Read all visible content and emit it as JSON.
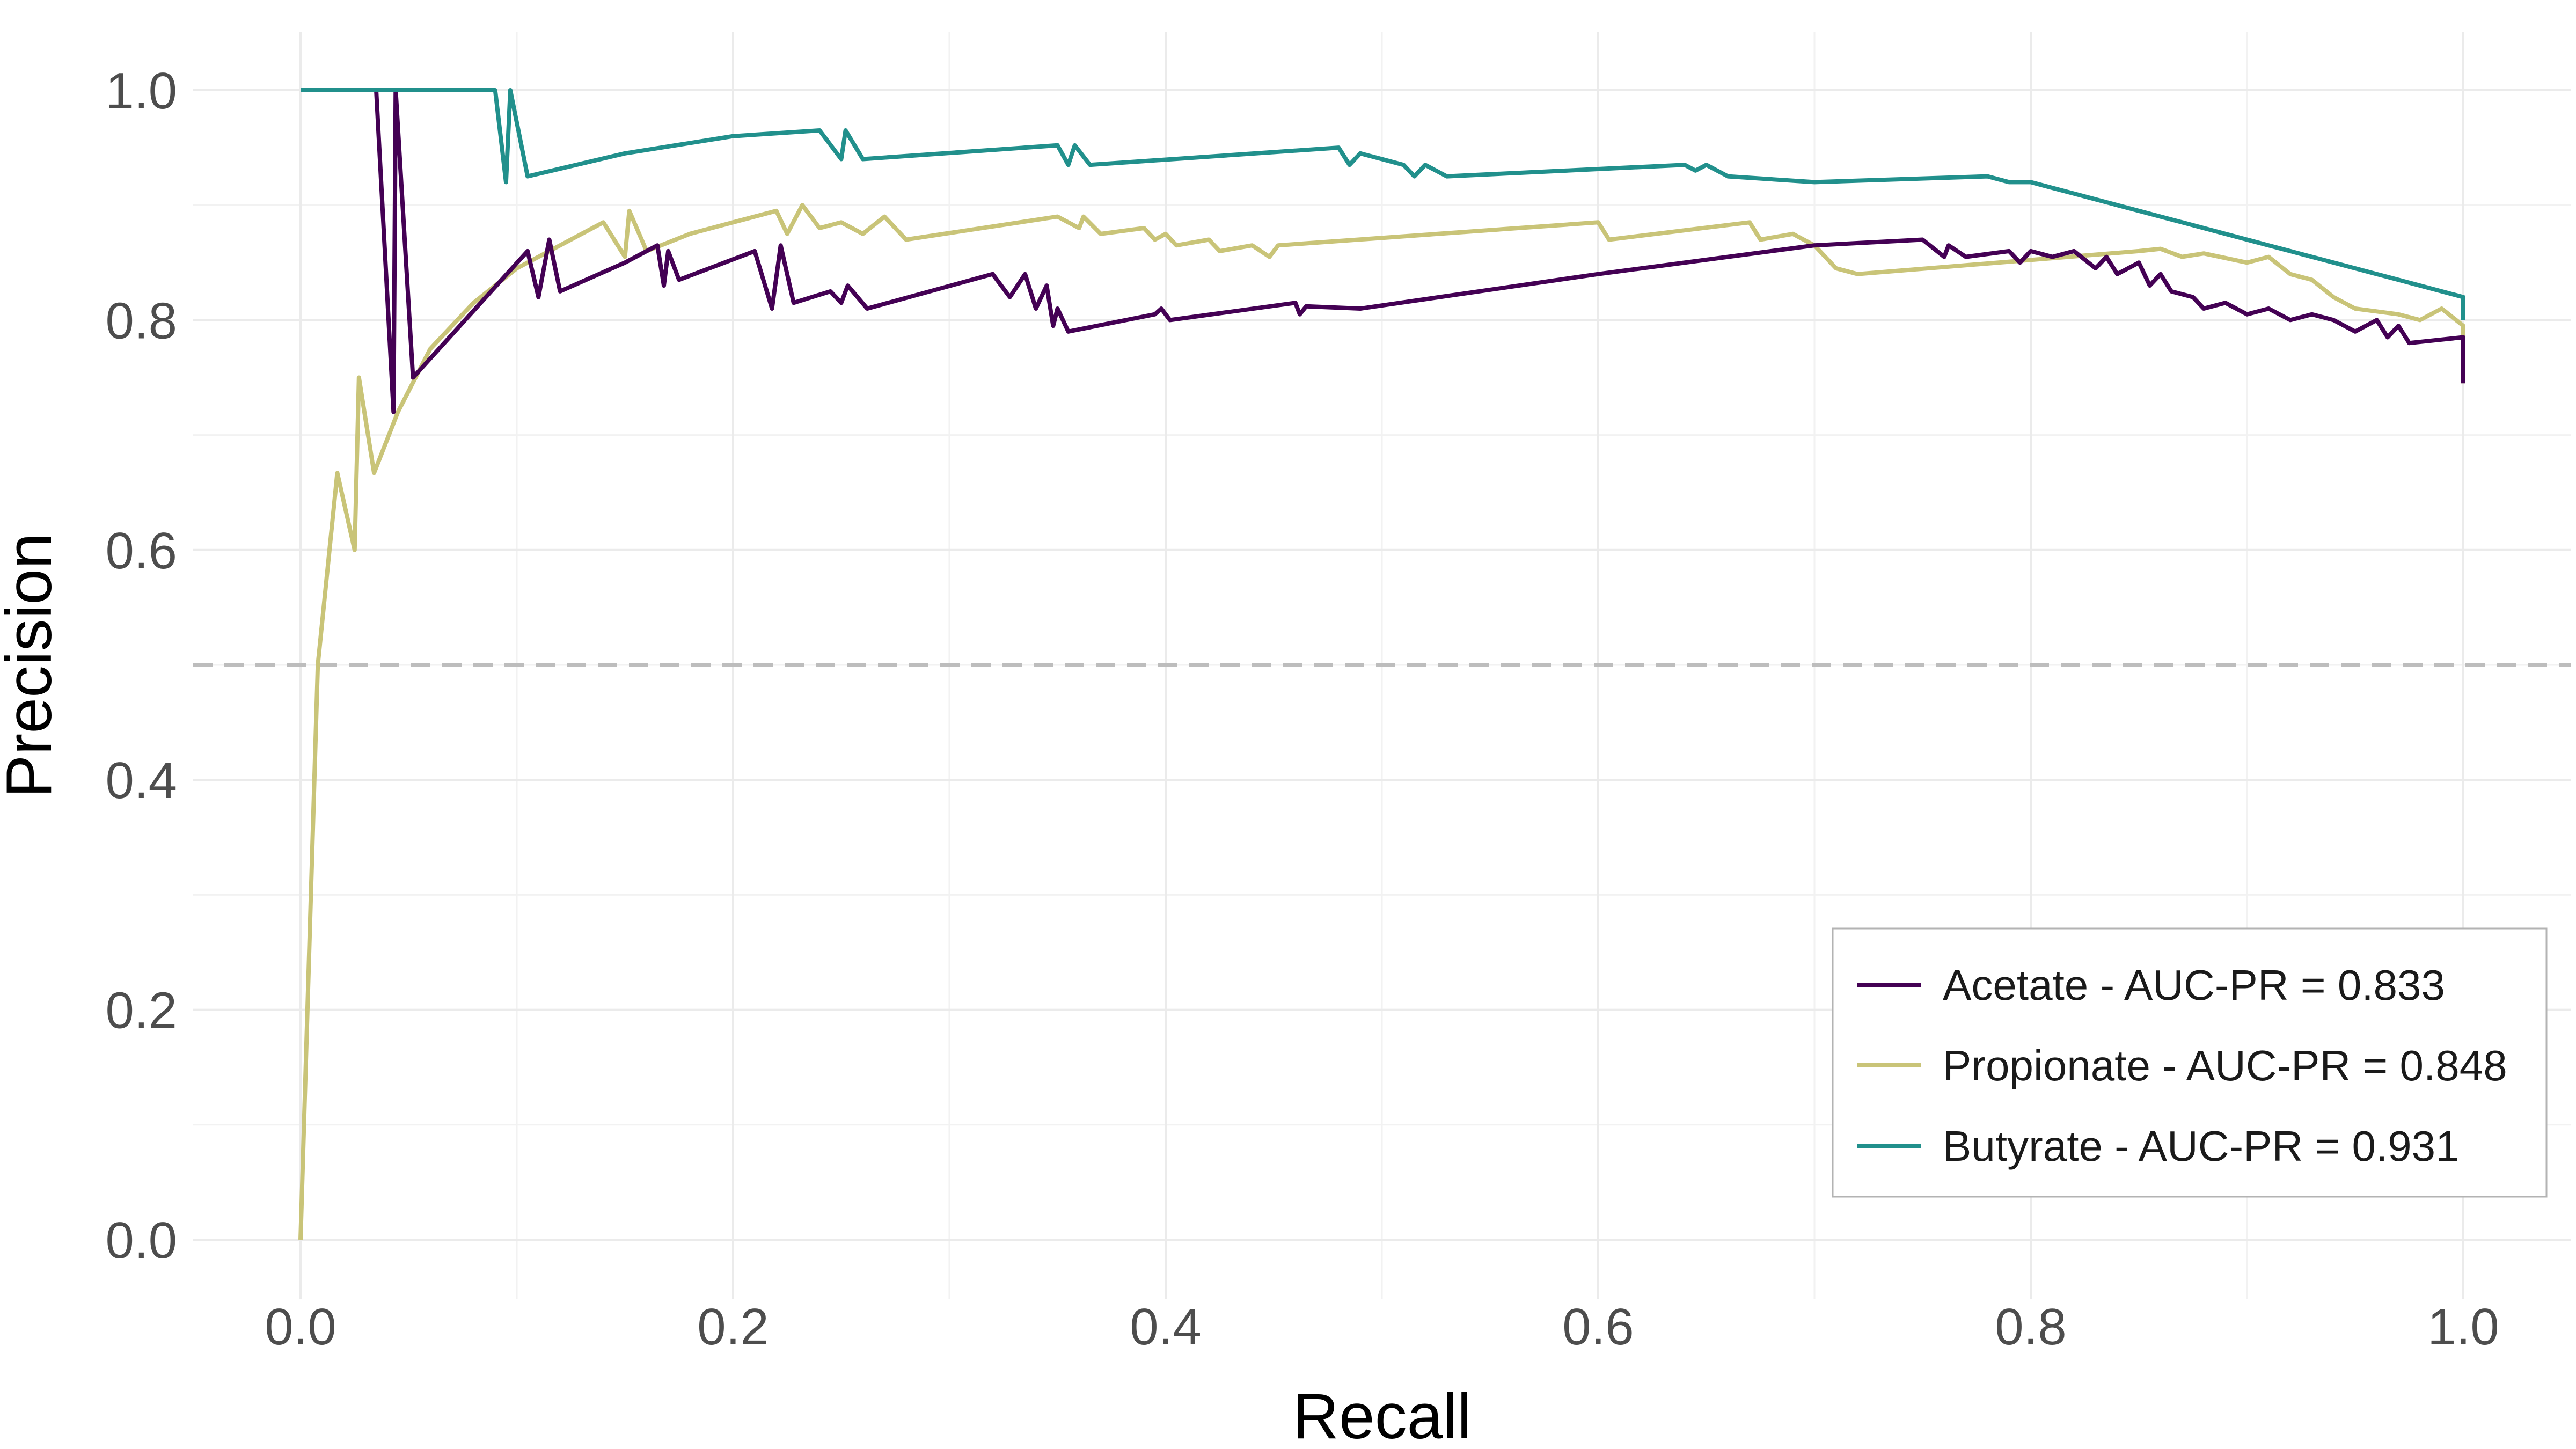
{
  "chart_data": {
    "type": "line",
    "title": "",
    "xlabel": "Recall",
    "ylabel": "Precision",
    "xlim": [
      -0.05,
      1.05
    ],
    "ylim": [
      -0.05,
      1.05
    ],
    "x_ticks": [
      0.0,
      0.2,
      0.4,
      0.6,
      0.8,
      1.0
    ],
    "y_ticks": [
      0.0,
      0.2,
      0.4,
      0.6,
      0.8,
      1.0
    ],
    "x_tick_labels": [
      "0.0",
      "0.2",
      "0.4",
      "0.6",
      "0.8",
      "1.0"
    ],
    "y_tick_labels": [
      "0.0",
      "0.2",
      "0.4",
      "0.6",
      "0.8",
      "1.0"
    ],
    "grid": true,
    "baseline": {
      "y": 0.5,
      "style": "dashed",
      "color": "#bdbdbd"
    },
    "legend_position": "bottom-right",
    "series": [
      {
        "name": "Acetate - AUC-PR = 0.833",
        "color": "#440154",
        "points": [
          [
            0.035,
            1.0
          ],
          [
            0.043,
            0.72
          ],
          [
            0.044,
            1.0
          ],
          [
            0.052,
            0.75
          ],
          [
            0.105,
            0.86
          ],
          [
            0.11,
            0.82
          ],
          [
            0.115,
            0.87
          ],
          [
            0.12,
            0.825
          ],
          [
            0.15,
            0.85
          ],
          [
            0.165,
            0.865
          ],
          [
            0.168,
            0.83
          ],
          [
            0.17,
            0.86
          ],
          [
            0.175,
            0.835
          ],
          [
            0.21,
            0.86
          ],
          [
            0.218,
            0.81
          ],
          [
            0.222,
            0.865
          ],
          [
            0.228,
            0.815
          ],
          [
            0.245,
            0.825
          ],
          [
            0.25,
            0.815
          ],
          [
            0.253,
            0.83
          ],
          [
            0.262,
            0.81
          ],
          [
            0.32,
            0.84
          ],
          [
            0.328,
            0.82
          ],
          [
            0.335,
            0.84
          ],
          [
            0.34,
            0.81
          ],
          [
            0.345,
            0.83
          ],
          [
            0.348,
            0.795
          ],
          [
            0.35,
            0.81
          ],
          [
            0.355,
            0.79
          ],
          [
            0.395,
            0.805
          ],
          [
            0.398,
            0.81
          ],
          [
            0.402,
            0.8
          ],
          [
            0.46,
            0.815
          ],
          [
            0.462,
            0.805
          ],
          [
            0.465,
            0.812
          ],
          [
            0.49,
            0.81
          ],
          [
            0.6,
            0.84
          ],
          [
            0.7,
            0.865
          ],
          [
            0.75,
            0.87
          ],
          [
            0.76,
            0.855
          ],
          [
            0.762,
            0.865
          ],
          [
            0.77,
            0.855
          ],
          [
            0.79,
            0.86
          ],
          [
            0.795,
            0.85
          ],
          [
            0.8,
            0.86
          ],
          [
            0.81,
            0.855
          ],
          [
            0.82,
            0.86
          ],
          [
            0.83,
            0.845
          ],
          [
            0.835,
            0.855
          ],
          [
            0.84,
            0.84
          ],
          [
            0.85,
            0.85
          ],
          [
            0.855,
            0.83
          ],
          [
            0.86,
            0.84
          ],
          [
            0.865,
            0.825
          ],
          [
            0.875,
            0.82
          ],
          [
            0.88,
            0.81
          ],
          [
            0.89,
            0.815
          ],
          [
            0.9,
            0.805
          ],
          [
            0.91,
            0.81
          ],
          [
            0.92,
            0.8
          ],
          [
            0.93,
            0.805
          ],
          [
            0.94,
            0.8
          ],
          [
            0.95,
            0.79
          ],
          [
            0.96,
            0.8
          ],
          [
            0.965,
            0.785
          ],
          [
            0.97,
            0.795
          ],
          [
            0.975,
            0.78
          ],
          [
            1.0,
            0.785
          ],
          [
            1.0,
            0.745
          ]
        ]
      },
      {
        "name": "Propionate - AUC-PR = 0.848",
        "color": "#c9c478",
        "points": [
          [
            0.0,
            0.0
          ],
          [
            0.008,
            0.5
          ],
          [
            0.017,
            0.667
          ],
          [
            0.025,
            0.6
          ],
          [
            0.027,
            0.75
          ],
          [
            0.034,
            0.667
          ],
          [
            0.045,
            0.72
          ],
          [
            0.06,
            0.775
          ],
          [
            0.08,
            0.815
          ],
          [
            0.1,
            0.845
          ],
          [
            0.12,
            0.865
          ],
          [
            0.14,
            0.885
          ],
          [
            0.15,
            0.855
          ],
          [
            0.152,
            0.895
          ],
          [
            0.16,
            0.86
          ],
          [
            0.18,
            0.875
          ],
          [
            0.2,
            0.885
          ],
          [
            0.22,
            0.895
          ],
          [
            0.225,
            0.875
          ],
          [
            0.232,
            0.9
          ],
          [
            0.24,
            0.88
          ],
          [
            0.25,
            0.885
          ],
          [
            0.26,
            0.875
          ],
          [
            0.27,
            0.89
          ],
          [
            0.28,
            0.87
          ],
          [
            0.35,
            0.89
          ],
          [
            0.36,
            0.88
          ],
          [
            0.362,
            0.89
          ],
          [
            0.37,
            0.875
          ],
          [
            0.39,
            0.88
          ],
          [
            0.395,
            0.87
          ],
          [
            0.4,
            0.875
          ],
          [
            0.405,
            0.865
          ],
          [
            0.42,
            0.87
          ],
          [
            0.425,
            0.86
          ],
          [
            0.44,
            0.865
          ],
          [
            0.448,
            0.855
          ],
          [
            0.452,
            0.865
          ],
          [
            0.6,
            0.885
          ],
          [
            0.605,
            0.87
          ],
          [
            0.67,
            0.885
          ],
          [
            0.675,
            0.87
          ],
          [
            0.69,
            0.875
          ],
          [
            0.7,
            0.865
          ],
          [
            0.71,
            0.845
          ],
          [
            0.72,
            0.84
          ],
          [
            0.85,
            0.86
          ],
          [
            0.86,
            0.862
          ],
          [
            0.87,
            0.855
          ],
          [
            0.88,
            0.858
          ],
          [
            0.9,
            0.85
          ],
          [
            0.91,
            0.855
          ],
          [
            0.92,
            0.84
          ],
          [
            0.93,
            0.835
          ],
          [
            0.94,
            0.82
          ],
          [
            0.95,
            0.81
          ],
          [
            0.97,
            0.805
          ],
          [
            0.98,
            0.8
          ],
          [
            0.99,
            0.81
          ],
          [
            1.0,
            0.795
          ],
          [
            1.0,
            0.745
          ]
        ]
      },
      {
        "name": "Butyrate - AUC-PR = 0.931",
        "color": "#21908c",
        "points": [
          [
            0.0,
            1.0
          ],
          [
            0.09,
            1.0
          ],
          [
            0.095,
            0.92
          ],
          [
            0.097,
            1.0
          ],
          [
            0.105,
            0.925
          ],
          [
            0.15,
            0.945
          ],
          [
            0.2,
            0.96
          ],
          [
            0.24,
            0.965
          ],
          [
            0.25,
            0.94
          ],
          [
            0.252,
            0.965
          ],
          [
            0.26,
            0.94
          ],
          [
            0.35,
            0.952
          ],
          [
            0.355,
            0.935
          ],
          [
            0.358,
            0.952
          ],
          [
            0.365,
            0.935
          ],
          [
            0.48,
            0.95
          ],
          [
            0.485,
            0.935
          ],
          [
            0.49,
            0.945
          ],
          [
            0.5,
            0.94
          ],
          [
            0.51,
            0.935
          ],
          [
            0.515,
            0.925
          ],
          [
            0.52,
            0.935
          ],
          [
            0.53,
            0.925
          ],
          [
            0.64,
            0.935
          ],
          [
            0.645,
            0.93
          ],
          [
            0.65,
            0.935
          ],
          [
            0.66,
            0.925
          ],
          [
            0.7,
            0.92
          ],
          [
            0.78,
            0.925
          ],
          [
            0.79,
            0.92
          ],
          [
            0.8,
            0.92
          ],
          [
            0.81,
            0.915
          ],
          [
            0.82,
            0.91
          ],
          [
            0.83,
            0.905
          ],
          [
            0.84,
            0.9
          ],
          [
            0.85,
            0.895
          ],
          [
            0.86,
            0.89
          ],
          [
            0.87,
            0.885
          ],
          [
            0.88,
            0.88
          ],
          [
            0.89,
            0.875
          ],
          [
            0.9,
            0.87
          ],
          [
            0.91,
            0.865
          ],
          [
            0.92,
            0.86
          ],
          [
            0.93,
            0.855
          ],
          [
            0.94,
            0.85
          ],
          [
            0.95,
            0.845
          ],
          [
            0.96,
            0.84
          ],
          [
            0.97,
            0.835
          ],
          [
            0.98,
            0.83
          ],
          [
            0.99,
            0.825
          ],
          [
            1.0,
            0.82
          ],
          [
            1.0,
            0.8
          ]
        ]
      }
    ]
  }
}
